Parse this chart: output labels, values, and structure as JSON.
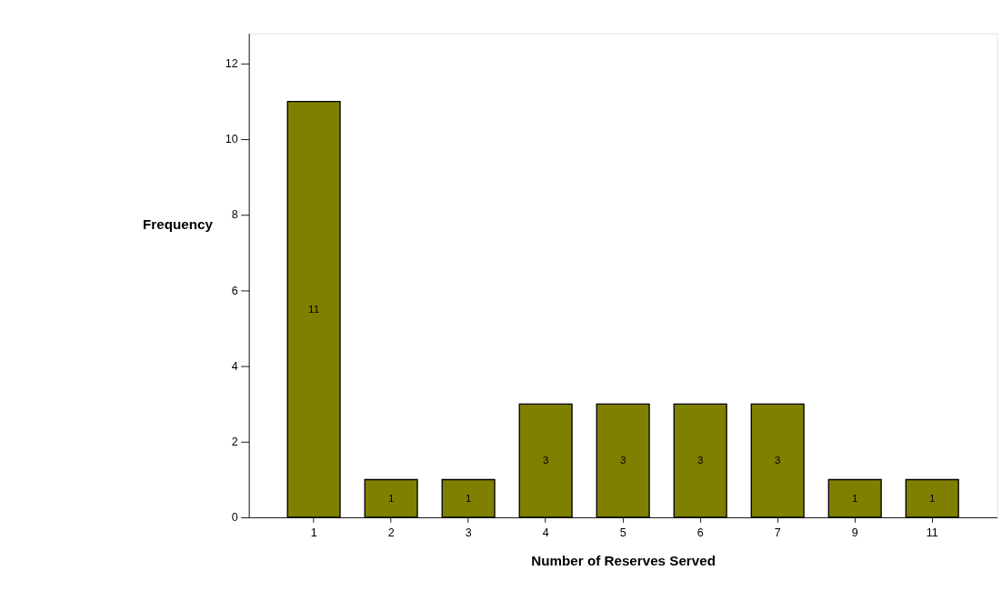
{
  "chart_data": {
    "type": "bar",
    "xlabel": "Number of Reserves Served",
    "ylabel": "Frequency",
    "categories": [
      "1",
      "2",
      "3",
      "4",
      "5",
      "6",
      "7",
      "9",
      "11"
    ],
    "values": [
      11,
      1,
      1,
      3,
      3,
      3,
      3,
      1,
      1
    ],
    "color": "#808000",
    "ylim": [
      0,
      12.8
    ],
    "yticks": [
      0,
      2,
      4,
      6,
      8,
      10,
      12
    ],
    "grid": false,
    "data_labels": true
  }
}
